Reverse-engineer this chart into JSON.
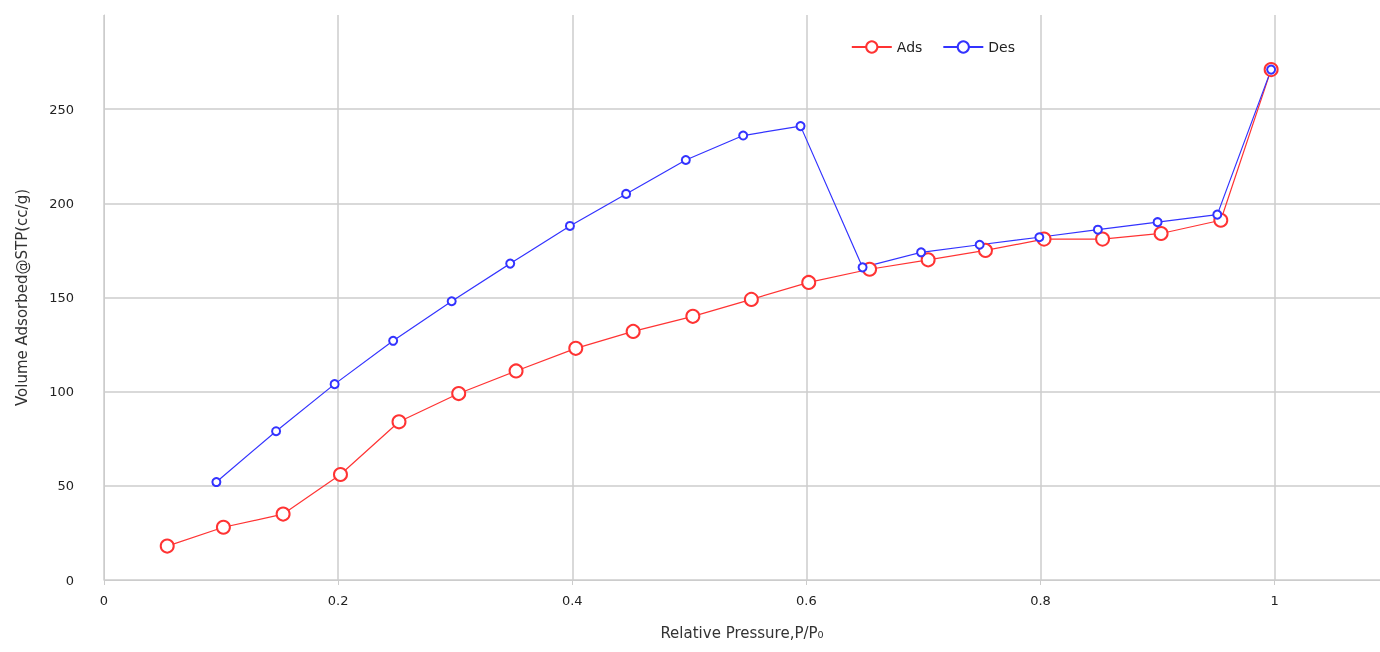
{
  "chart_data": {
    "type": "line",
    "xlabel": "Relative Pressure,P/P₀",
    "ylabel": "Volume Adsorbed@STP(cc/g)",
    "xlim": [
      0,
      1.09
    ],
    "xticks": [
      0,
      0.2,
      0.4,
      0.6,
      0.8,
      1
    ],
    "ylim": [
      0,
      300
    ],
    "yticks": [
      0,
      50,
      100,
      150,
      200,
      250
    ],
    "grid": true,
    "legend": "top right",
    "marker": "circle",
    "line_style": "solid",
    "series": [
      {
        "name": "Ads",
        "color": "#ff3333",
        "x": [
          0.054,
          0.102,
          0.153,
          0.202,
          0.252,
          0.303,
          0.352,
          0.403,
          0.452,
          0.503,
          0.553,
          0.602,
          0.654,
          0.704,
          0.753,
          0.803,
          0.853,
          0.903,
          0.954,
          0.997
        ],
        "values": [
          18,
          28,
          35,
          56,
          84,
          99,
          111,
          123,
          132,
          140,
          149,
          158,
          165,
          170,
          175,
          181,
          181,
          184,
          191,
          271
        ]
      },
      {
        "name": "Des",
        "color": "#3333ff",
        "x": [
          0.997,
          0.951,
          0.9,
          0.849,
          0.799,
          0.748,
          0.698,
          0.648,
          0.595,
          0.546,
          0.497,
          0.446,
          0.398,
          0.347,
          0.297,
          0.247,
          0.197,
          0.147,
          0.096
        ],
        "values": [
          271,
          194,
          190,
          186,
          182,
          178,
          174,
          166,
          241,
          236,
          223,
          205,
          188,
          168,
          148,
          127,
          104,
          79,
          52
        ]
      }
    ]
  }
}
